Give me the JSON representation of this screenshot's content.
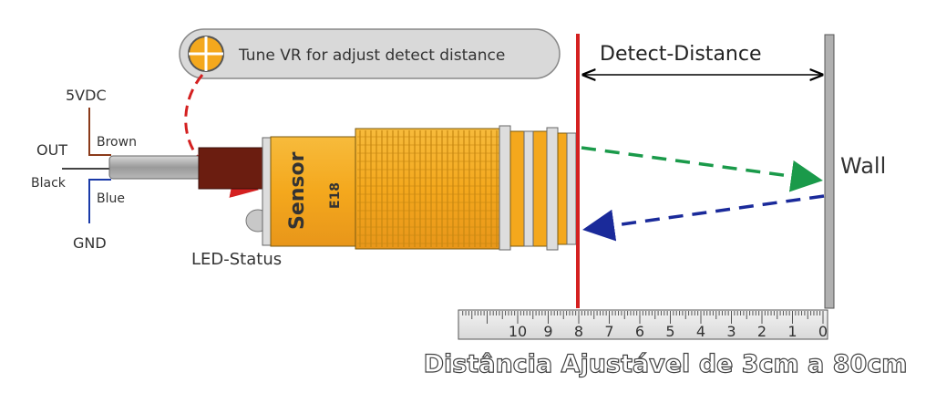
{
  "tooltip": {
    "text": "Tune VR for adjust detect distance",
    "icon": "crosshair-knob-icon"
  },
  "labels": {
    "detect_distance": "Detect-Distance",
    "wall": "Wall",
    "led_status": "LED-Status",
    "sensor": "Sensor",
    "model": "E18",
    "caption": "Distância Ajustável de 3cm a 80cm"
  },
  "wires": {
    "vdc": "5VDC",
    "brown": "Brown",
    "out": "OUT",
    "black": "Black",
    "blue": "Blue",
    "gnd": "GND"
  },
  "ruler": {
    "ticks": [
      "10",
      "9",
      "8",
      "7",
      "6",
      "5",
      "4",
      "3",
      "2",
      "1",
      "0"
    ]
  },
  "colors": {
    "sensor_body": "#f4a81d",
    "cable": "#6b1d10",
    "detect_line": "#d42020",
    "emit_arrow": "#1a9a4a",
    "return_arrow": "#1a2a9a",
    "wire_brown": "#8b3a1a",
    "wire_blue": "#1a3aa8",
    "tune_arrow": "#d42020"
  }
}
